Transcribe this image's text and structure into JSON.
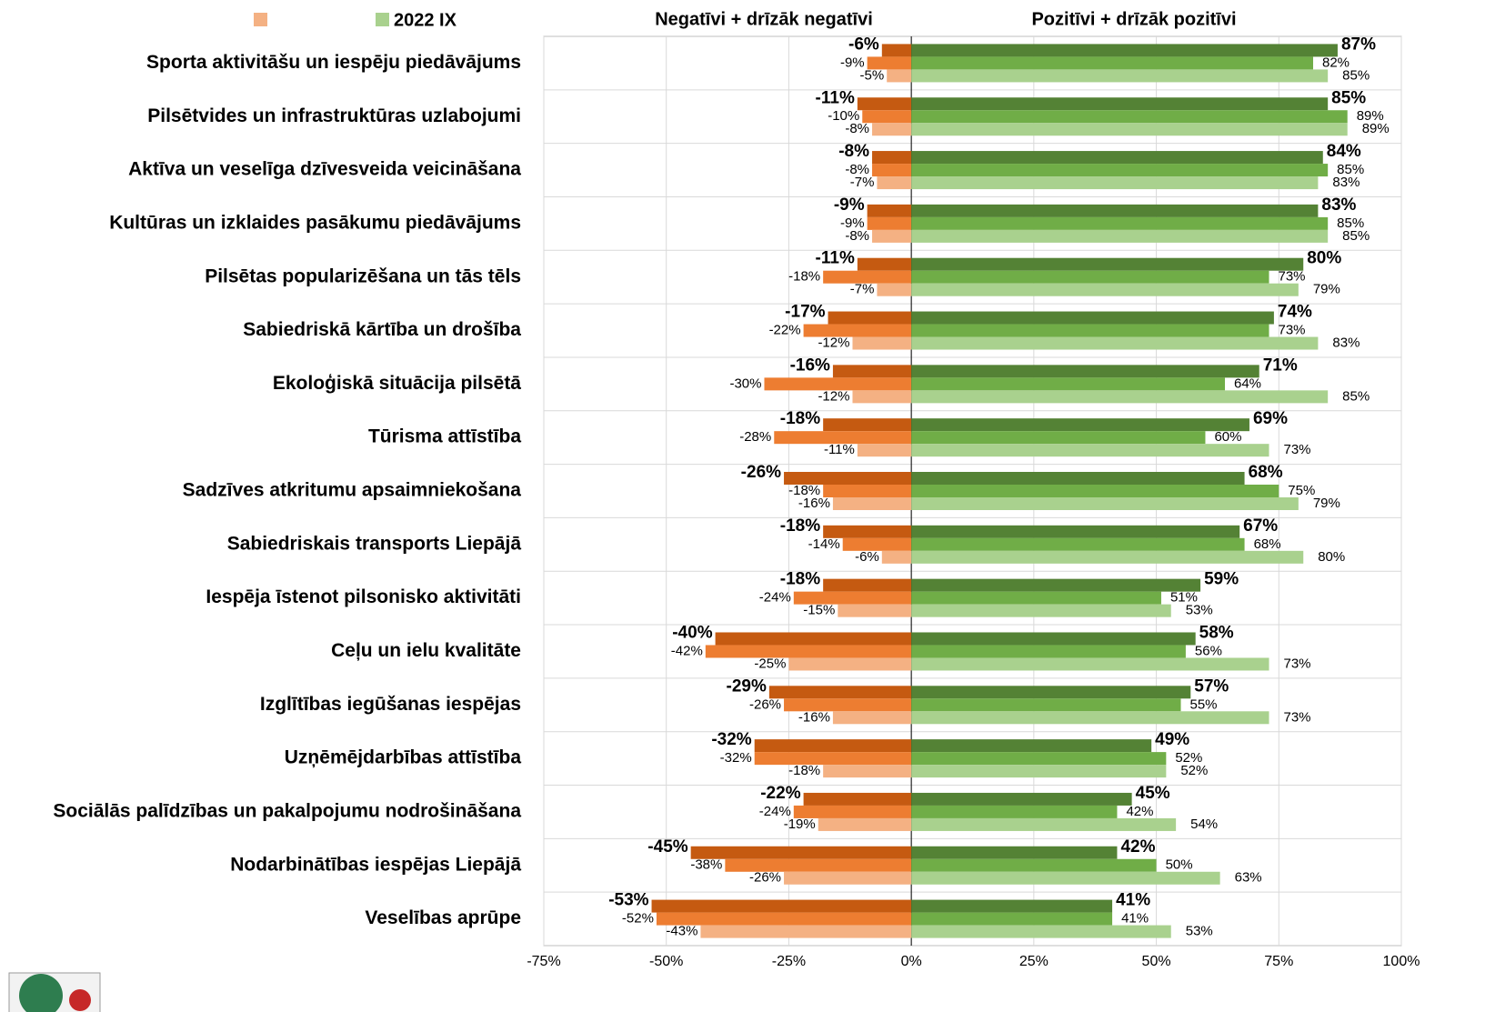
{
  "chart_data": {
    "type": "diverging-bar",
    "header_negative": "Negatīvi + drīzāk negatīvi",
    "header_positive": "Pozitīvi + drīzāk pozitīvi",
    "categories": [
      "Sporta aktivitāšu un iespēju piedāvājums",
      "Pilsētvides un infrastruktūras uzlabojumi",
      "Aktīva un veselīga dzīvesveida veicināšana",
      "Kultūras un izklaides pasākumu piedāvājums",
      "Pilsētas popularizēšana un tās tēls",
      "Sabiedriskā kārtība un drošība",
      "Ekoloģiskā situācija pilsētā",
      "Tūrisma attīstība",
      "Sadzīves atkritumu apsaimniekošana",
      "Sabiedriskais transports Liepājā",
      "Iespēja īstenot pilsonisko aktivitāti",
      "Ceļu un ielu kvalitāte",
      "Izglītības iegūšanas iespējas",
      "Uzņēmējdarbības attīstība",
      "Sociālās palīdzības un pakalpojumu nodrošināšana",
      "Nodarbinātības iespējas Liepājā",
      "Veselības aprūpe"
    ],
    "series": [
      {
        "color": "#c55a11",
        "values": [
          -6,
          -11,
          -8,
          -9,
          -11,
          -17,
          -16,
          -18,
          -26,
          -18,
          -18,
          -40,
          -29,
          -32,
          -22,
          -45,
          -53
        ],
        "value_labels": [
          "-6%",
          "-11%",
          "-8%",
          "-9%",
          "-11%",
          "-17%",
          "-16%",
          "-18%",
          "-26%",
          "-18%",
          "-18%",
          "-40%",
          "-29%",
          "-32%",
          "-22%",
          "-45%",
          "-53%"
        ]
      },
      {
        "color": "#ed7d31",
        "values": [
          -9,
          -10,
          -8,
          -9,
          -18,
          -22,
          -30,
          -28,
          -18,
          -14,
          -24,
          -42,
          -26,
          -32,
          -24,
          -38,
          -52
        ],
        "value_labels": [
          "-9%",
          "-10%",
          "-8%",
          "-9%",
          "-18%",
          "-22%",
          "-30%",
          "-28%",
          "-18%",
          "-14%",
          "-24%",
          "-42%",
          "-26%",
          "-32%",
          "-24%",
          "-38%",
          "-52%"
        ]
      },
      {
        "name": null,
        "color": "#f4b183",
        "values": [
          -5,
          -8,
          -7,
          -8,
          -7,
          -12,
          -12,
          -11,
          -16,
          -6,
          -15,
          -25,
          -16,
          -18,
          -19,
          -26,
          -43
        ],
        "value_labels": [
          "-5%",
          "-8%",
          "-7%",
          "-8%",
          "-7%",
          "-12%",
          "-12%",
          "-11%",
          "-16%",
          "-6%",
          "-15%",
          "-25%",
          "-16%",
          "-18%",
          "-19%",
          "-26%",
          "-43%"
        ]
      },
      {
        "color": "#548235",
        "values": [
          87,
          85,
          84,
          83,
          80,
          74,
          71,
          69,
          68,
          67,
          59,
          58,
          57,
          49,
          45,
          42,
          41
        ],
        "value_labels": [
          "87%",
          "85%",
          "84%",
          "83%",
          "80%",
          "74%",
          "71%",
          "69%",
          "68%",
          "67%",
          "59%",
          "58%",
          "57%",
          "49%",
          "45%",
          "42%",
          "41%"
        ]
      },
      {
        "color": "#70ad47",
        "values": [
          82,
          89,
          85,
          85,
          73,
          73,
          64,
          60,
          75,
          68,
          51,
          56,
          55,
          52,
          42,
          50,
          41
        ],
        "value_labels": [
          "82%",
          "89%",
          "85%",
          "85%",
          "73%",
          "73%",
          "64%",
          "60%",
          "75%",
          "68%",
          "51%",
          "56%",
          "55%",
          "52%",
          "42%",
          "50%",
          "41%"
        ]
      },
      {
        "name": "2022 IX",
        "color": "#a9d18e",
        "values": [
          85,
          89,
          83,
          85,
          79,
          83,
          85,
          73,
          79,
          80,
          53,
          73,
          73,
          52,
          54,
          63,
          53
        ],
        "value_labels": [
          "85%",
          "89%",
          "83%",
          "85%",
          "79%",
          "83%",
          "85%",
          "73%",
          "79%",
          "80%",
          "53%",
          "73%",
          "73%",
          "52%",
          "54%",
          "63%",
          "53%"
        ]
      }
    ],
    "xlim": [
      -75,
      100
    ],
    "xticks": [
      {
        "value": -75,
        "label": "-75%"
      },
      {
        "value": -50,
        "label": "-50%"
      },
      {
        "value": -25,
        "label": "-25%"
      },
      {
        "value": 0,
        "label": "0%"
      },
      {
        "value": 25,
        "label": "25%"
      },
      {
        "value": 50,
        "label": "50%"
      },
      {
        "value": 75,
        "label": "75%"
      },
      {
        "value": 100,
        "label": "100%"
      }
    ],
    "grid": true
  }
}
